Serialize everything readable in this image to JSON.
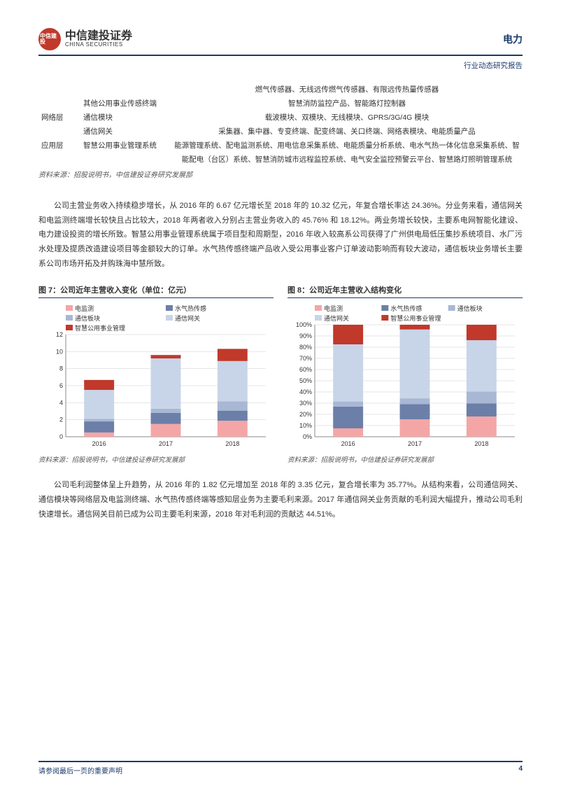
{
  "header": {
    "logo_cn": "中信建投证券",
    "logo_en": "CHINA SECURITIES",
    "sector": "电力",
    "report_type": "行业动态研究报告"
  },
  "table": {
    "rows": [
      {
        "c1": "",
        "c2": "",
        "c3": "燃气传感器、无线远传燃气传感器、有限远传热量传感器"
      },
      {
        "c1": "",
        "c2": "其他公用事业传感终端",
        "c3": "智慧消防监控产品、智能路灯控制器"
      },
      {
        "c1": "网络层",
        "c2": "通信模块",
        "c3": "载波模块、双模块、无线模块、GPRS/3G/4G 模块"
      },
      {
        "c1": "",
        "c2": "通信网关",
        "c3": "采集器、集中器、专变终端、配变终端、关口终端、网络表模块、电能质量产品"
      },
      {
        "c1": "应用层",
        "c2": "智慧公用事业管理系统",
        "c3": "能源管理系统、配电监测系统、用电信息采集系统、电能质量分析系统、电水气热一体化信息采集系统、智能配电（台区）系统、智慧消防城市远程监控系统、电气安全监控预警云平台、智慧路灯照明管理系统"
      }
    ],
    "source": "资料来源：招股说明书，中信建投证券研究发展部"
  },
  "para1": "公司主营业务收入持续稳步增长，从 2016 年的 6.67 亿元增长至 2018 年的 10.32 亿元，年复合增长率达 24.36%。分业务来看，通信网关和电监测终端增长较快且占比较大，2018 年两者收入分别占主营业务收入的 45.76% 和 18.12%。两业务增长较快，主要系电网智能化建设、电力建设投资的增长所致。智慧公用事业管理系统属于项目型和周期型，2016 年收入较高系公司获得了广州供电局低压集抄系统项目、水厂污水处理及提质改造建设项目等金额较大的订单。水气热传感终端产品收入受公用事业客户订单波动影响而有较大波动，通信板块业务增长主要系公司市场开拓及并购珠海中慧所致。",
  "chart7": {
    "title": "图 7：公司近年主营收入变化（单位：亿元）",
    "type": "stacked-bar",
    "categories": [
      "2016",
      "2017",
      "2018"
    ],
    "series": [
      {
        "name": "电监测",
        "color": "#f4a6a6",
        "values": [
          0.5,
          1.5,
          1.87
        ]
      },
      {
        "name": "水气热传感",
        "color": "#6b7fa8",
        "values": [
          1.3,
          1.3,
          1.2
        ]
      },
      {
        "name": "通信板块",
        "color": "#a8b8d4",
        "values": [
          0.3,
          0.5,
          1.1
        ]
      },
      {
        "name": "通信网关",
        "color": "#c8d4e8",
        "values": [
          3.4,
          5.9,
          4.72
        ]
      },
      {
        "name": "智慧公用事业管理",
        "color": "#c0392b",
        "values": [
          1.17,
          0.4,
          1.43
        ]
      }
    ],
    "ylim": [
      0,
      12
    ],
    "ytick_step": 2,
    "grid_color": "#cccccc",
    "background": "#ffffff",
    "title_fontsize": 11,
    "axis_fontsize": 9,
    "legend_fontsize": 9,
    "bar_width": 0.45,
    "source": "资料来源：招股说明书，中信建投证券研究发展部"
  },
  "chart8": {
    "title": "图 8：公司近年主营收入结构变化",
    "type": "stacked-bar-percent",
    "categories": [
      "2016",
      "2017",
      "2018"
    ],
    "series": [
      {
        "name": "电监测",
        "color": "#f4a6a6",
        "values": [
          7.5,
          15.6,
          18.1
        ]
      },
      {
        "name": "水气热传感",
        "color": "#6b7fa8",
        "values": [
          19.5,
          13.5,
          11.6
        ]
      },
      {
        "name": "通信板块",
        "color": "#a8b8d4",
        "values": [
          4.5,
          5.2,
          10.7
        ]
      },
      {
        "name": "通信网关",
        "color": "#c8d4e8",
        "values": [
          51.0,
          61.5,
          45.8
        ]
      },
      {
        "name": "智慧公用事业管理",
        "color": "#c0392b",
        "values": [
          17.5,
          4.2,
          13.8
        ]
      }
    ],
    "ylim": [
      0,
      100
    ],
    "ytick_step": 10,
    "y_suffix": "%",
    "grid_color": "#cccccc",
    "background": "#ffffff",
    "title_fontsize": 11,
    "axis_fontsize": 9,
    "legend_fontsize": 9,
    "bar_width": 0.45,
    "source": "资料来源：招股说明书，中信建投证券研究发展部"
  },
  "para2": "公司毛利润整体呈上升趋势，从 2016 年的 1.82 亿元增加至 2018 年的 3.35 亿元，复合增长率为 35.77%。从结构来看，公司通信网关、通信模块等网络层及电监测终端、水气热传感终端等感知层业务为主要毛利来源。2017 年通信网关业务贡献的毛利润大幅提升，推动公司毛利快速增长。通信网关目前已成为公司主要毛利来源，2018 年对毛利润的贡献达 44.51%。",
  "footer": {
    "disclaimer": "请参阅最后一页的重要声明",
    "page": "4"
  }
}
